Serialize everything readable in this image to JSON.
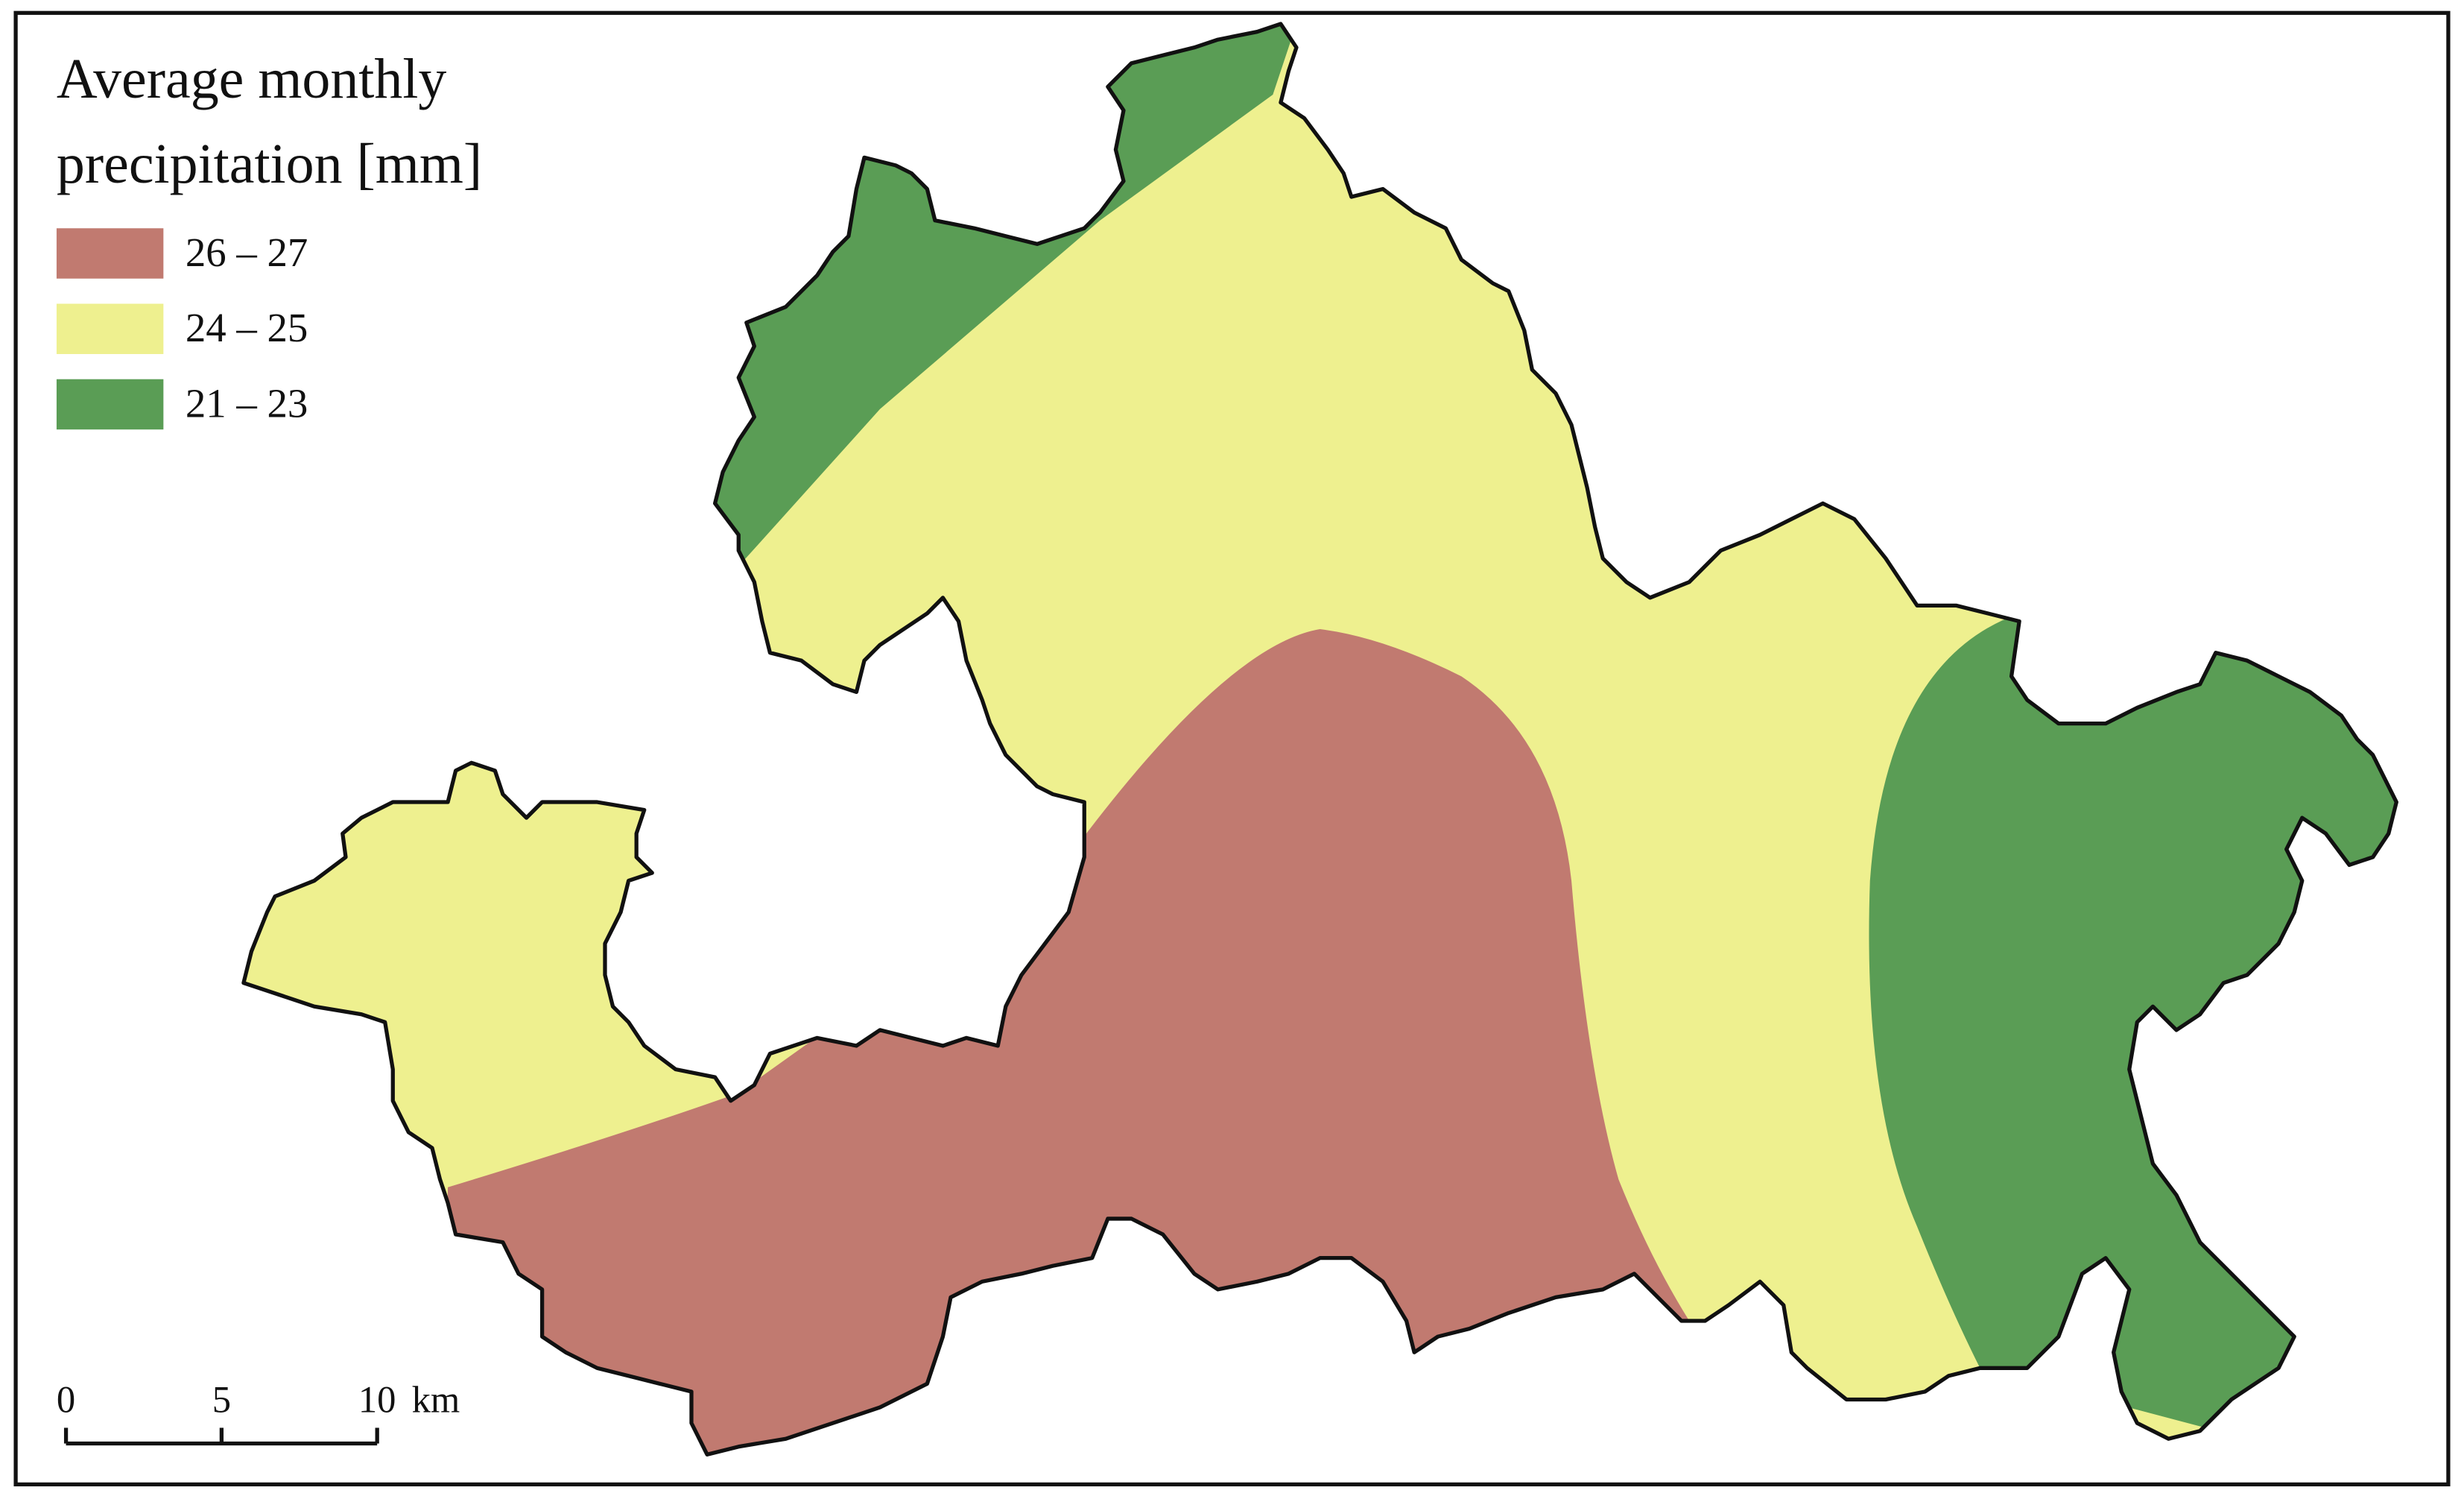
{
  "map": {
    "title_lines": [
      "Average monthly",
      "precipitation [mm]"
    ],
    "legend": [
      {
        "label": "26 – 27",
        "color": "#c17a70"
      },
      {
        "label": "24 – 25",
        "color": "#eef08f"
      },
      {
        "label": "21 – 23",
        "color": "#5a9d55"
      }
    ],
    "scale_bar": {
      "ticks": [
        0,
        5,
        10
      ],
      "unit": "km"
    }
  }
}
